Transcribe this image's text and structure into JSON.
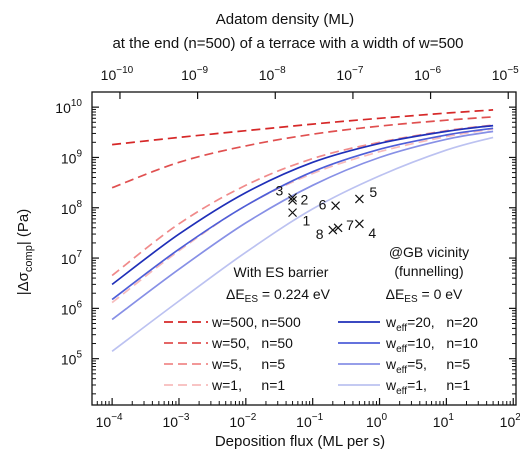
{
  "chart_data": {
    "type": "line",
    "top_axis": {
      "title_line1": "Adatom density (ML)",
      "title_line2": "at the end (n=500) of a terrace with a width of w=500",
      "tick_labels": [
        "10",
        "10",
        "10",
        "10",
        "10",
        "10"
      ],
      "tick_exponents": [
        "−10",
        "−9",
        "−8",
        "−7",
        "−6",
        "−5"
      ],
      "tick_values_log10": [
        -10,
        -9,
        -8,
        -7,
        -6,
        -5
      ],
      "range_log10": [
        -10.36,
        -4.9
      ]
    },
    "x_axis": {
      "label": "Deposition flux (ML per s)",
      "scale": "log",
      "range": [
        5e-05,
        110
      ],
      "tick_values_log10": [
        -4,
        -3,
        -2,
        -1,
        0,
        1,
        2
      ],
      "tick_labels": [
        "10",
        "10",
        "10",
        "10",
        "10",
        "10",
        "10"
      ],
      "tick_exponents": [
        "−4",
        "−3",
        "−2",
        "−1",
        "0",
        "1",
        "2"
      ]
    },
    "y_axis": {
      "label_main": "|Δσ",
      "label_sub": "comp",
      "label_tail": "| (Pa)",
      "scale": "log",
      "range": [
        12000,
        20000000000
      ],
      "tick_values_log10": [
        5,
        6,
        7,
        8,
        9,
        10
      ],
      "tick_labels": [
        "10",
        "10",
        "10",
        "10",
        "10",
        "10"
      ],
      "tick_exponents": [
        "5",
        "6",
        "7",
        "8",
        "9",
        "10"
      ]
    },
    "legend_left": {
      "heading1": "With ES barrier",
      "heading2": "ΔE",
      "heading2_sub": "ES",
      "heading2_tail": " = 0.224 eV",
      "entries": [
        "w=500, n=500",
        "w=50,   n=50",
        "w=5,     n=5",
        "w=1,     n=1"
      ]
    },
    "legend_right": {
      "heading1": "@GB vicinity",
      "heading1b": "(funnelling)",
      "heading2": "ΔE",
      "heading2_sub": "ES",
      "heading2_tail": " = 0 eV",
      "entries": [
        "20,   n=20",
        "10,   n=10",
        "5,     n=5",
        "1,     n=1"
      ],
      "entry_prefix": "w",
      "entry_sub": "eff"
    },
    "series": [
      {
        "group": "ES",
        "name": "w=500, n=500",
        "color": "#d62828",
        "dash": "dashed",
        "x": [
          0.0001,
          0.001,
          0.01,
          0.1,
          1,
          10,
          50
        ],
        "y": [
          1800000000,
          2500000000,
          3400000000,
          4600000000,
          6000000000,
          7600000000,
          8800000000
        ]
      },
      {
        "group": "ES",
        "name": "w=50, n=50",
        "color": "#e05050",
        "dash": "dashed",
        "x": [
          0.0001,
          0.001,
          0.01,
          0.1,
          1,
          10,
          50
        ],
        "y": [
          250000000,
          800000000,
          1700000000,
          2900000000,
          4200000000,
          5500000000,
          6400000000
        ]
      },
      {
        "group": "ES",
        "name": "w=5, n=5",
        "color": "#f08a8a",
        "dash": "dashed",
        "x": [
          0.0001,
          0.001,
          0.01,
          0.1,
          1,
          10,
          50
        ],
        "y": [
          4500000,
          48000000,
          280000000,
          950000000,
          2000000000,
          3400000000,
          4400000000
        ]
      },
      {
        "group": "ES",
        "name": "w=1, n=1",
        "color": "#f7bcbc",
        "dash": "dashed",
        "x": [
          0.0001,
          0.001,
          0.01,
          0.1,
          1,
          10,
          50
        ],
        "y": [
          1300000,
          14000000,
          110000000,
          480000000,
          1300000000,
          2600000000,
          3700000000
        ]
      },
      {
        "group": "GB",
        "name": "weff=20, n=20",
        "color": "#1f2fb8",
        "dash": "solid",
        "x": [
          0.0001,
          0.001,
          0.01,
          0.1,
          1,
          10,
          50
        ],
        "y": [
          3000000,
          30000000,
          200000000,
          800000000,
          1900000000,
          3300000000,
          4300000000
        ]
      },
      {
        "group": "GB",
        "name": "weff=10, n=10",
        "color": "#4e5ed8",
        "dash": "solid",
        "x": [
          0.0001,
          0.001,
          0.01,
          0.1,
          1,
          10,
          50
        ],
        "y": [
          1500000,
          15000000,
          110000000,
          520000000,
          1450000000,
          2800000000,
          3800000000
        ]
      },
      {
        "group": "GB",
        "name": "weff=5, n=5",
        "color": "#8790e6",
        "dash": "solid",
        "x": [
          0.0001,
          0.001,
          0.01,
          0.1,
          1,
          10,
          50
        ],
        "y": [
          600000,
          6000000,
          50000000,
          280000000,
          1000000000,
          2300000000,
          3300000000
        ]
      },
      {
        "group": "GB",
        "name": "weff=1, n=1",
        "color": "#bcc2f1",
        "dash": "solid",
        "x": [
          0.0001,
          0.001,
          0.01,
          0.1,
          1,
          10,
          50
        ],
        "y": [
          140000,
          1400000,
          13000000,
          95000000,
          430000000,
          1400000000,
          2500000000
        ]
      }
    ],
    "points": [
      {
        "label": "1",
        "x": 0.05,
        "y": 80000000
      },
      {
        "label": "2",
        "x": 0.05,
        "y": 140000000
      },
      {
        "label": "3",
        "x": 0.05,
        "y": 160000000
      },
      {
        "label": "4",
        "x": 0.5,
        "y": 48000000
      },
      {
        "label": "5",
        "x": 0.5,
        "y": 150000000
      },
      {
        "label": "6",
        "x": 0.22,
        "y": 110000000
      },
      {
        "label": "7",
        "x": 0.24,
        "y": 40000000
      },
      {
        "label": "8",
        "x": 0.2,
        "y": 36000000
      }
    ]
  }
}
